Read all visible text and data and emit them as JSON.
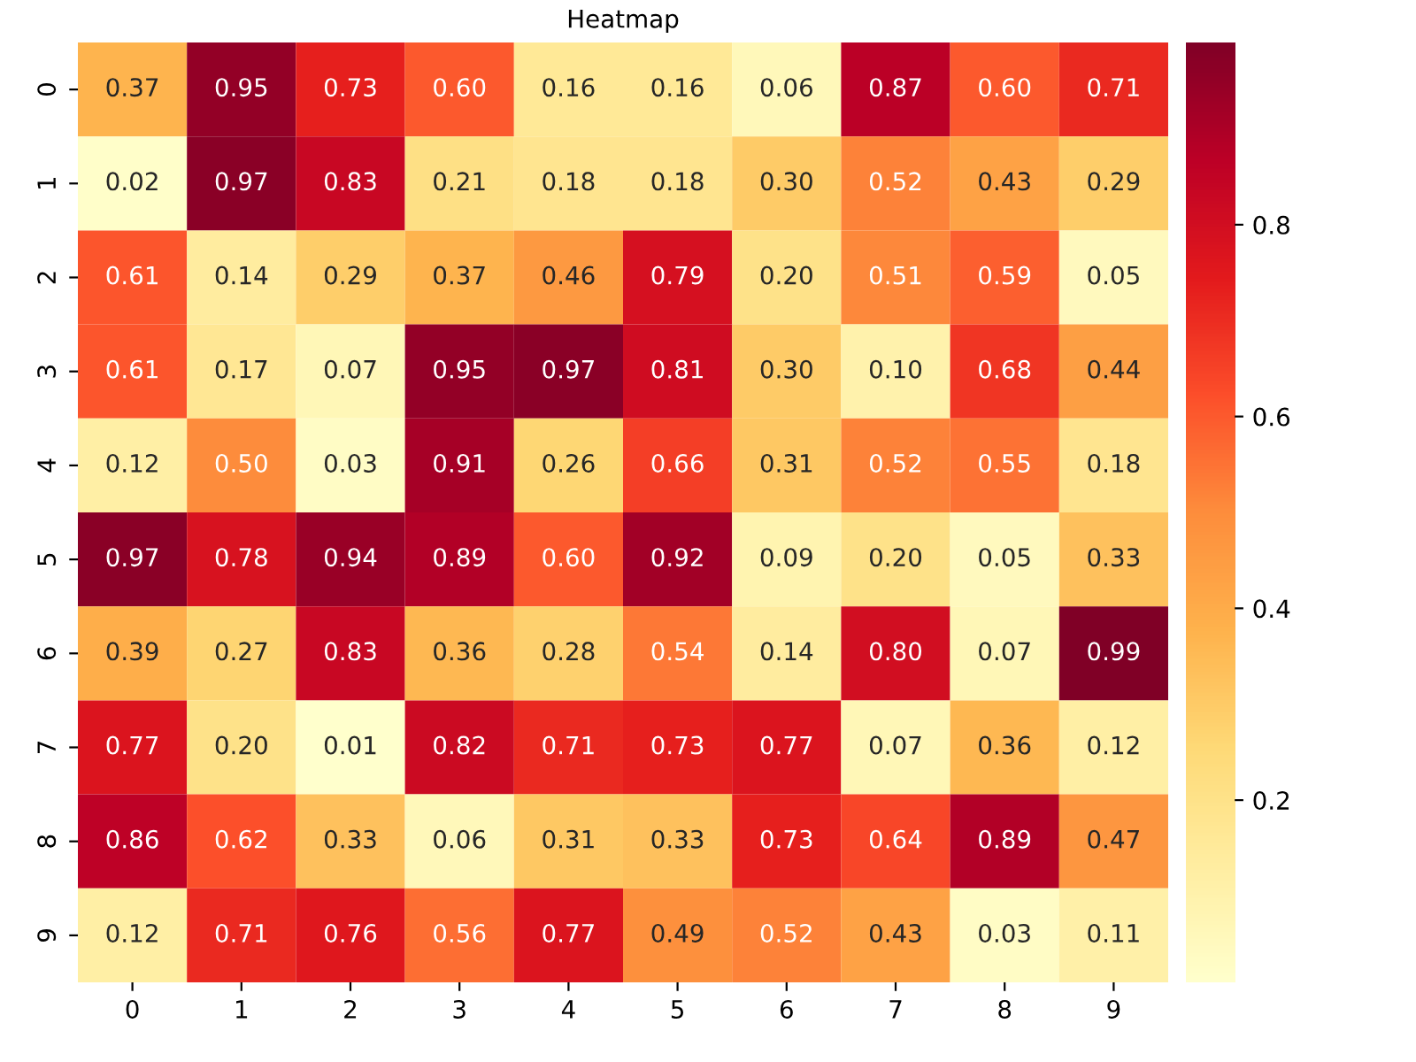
{
  "chart_data": {
    "type": "heatmap",
    "title": "Heatmap",
    "categories": [
      "0",
      "1",
      "2",
      "3",
      "4",
      "5",
      "6",
      "7",
      "8",
      "9"
    ],
    "y_categories": [
      "0",
      "1",
      "2",
      "3",
      "4",
      "5",
      "6",
      "7",
      "8",
      "9"
    ],
    "cells": [
      [
        0.37,
        0.95,
        0.73,
        0.6,
        0.16,
        0.16,
        0.06,
        0.87,
        0.6,
        0.71
      ],
      [
        0.02,
        0.97,
        0.83,
        0.21,
        0.18,
        0.18,
        0.3,
        0.52,
        0.43,
        0.29
      ],
      [
        0.61,
        0.14,
        0.29,
        0.37,
        0.46,
        0.79,
        0.2,
        0.51,
        0.59,
        0.05
      ],
      [
        0.61,
        0.17,
        0.07,
        0.95,
        0.97,
        0.81,
        0.3,
        0.1,
        0.68,
        0.44
      ],
      [
        0.12,
        0.5,
        0.03,
        0.91,
        0.26,
        0.66,
        0.31,
        0.52,
        0.55,
        0.18
      ],
      [
        0.97,
        0.78,
        0.94,
        0.89,
        0.6,
        0.92,
        0.09,
        0.2,
        0.05,
        0.33
      ],
      [
        0.39,
        0.27,
        0.83,
        0.36,
        0.28,
        0.54,
        0.14,
        0.8,
        0.07,
        0.99
      ],
      [
        0.77,
        0.2,
        0.01,
        0.82,
        0.71,
        0.73,
        0.77,
        0.07,
        0.36,
        0.12
      ],
      [
        0.86,
        0.62,
        0.33,
        0.06,
        0.31,
        0.33,
        0.73,
        0.64,
        0.89,
        0.47
      ],
      [
        0.12,
        0.71,
        0.76,
        0.56,
        0.77,
        0.49,
        0.52,
        0.43,
        0.03,
        0.11
      ]
    ],
    "cell_labels": [
      [
        "0.37",
        "0.95",
        "0.73",
        "0.60",
        "0.16",
        "0.16",
        "0.06",
        "0.87",
        "0.60",
        "0.71"
      ],
      [
        "0.02",
        "0.97",
        "0.83",
        "0.21",
        "0.18",
        "0.18",
        "0.30",
        "0.52",
        "0.43",
        "0.29"
      ],
      [
        "0.61",
        "0.14",
        "0.29",
        "0.37",
        "0.46",
        "0.79",
        "0.20",
        "0.51",
        "0.59",
        "0.05"
      ],
      [
        "0.61",
        "0.17",
        "0.07",
        "0.95",
        "0.97",
        "0.81",
        "0.30",
        "0.10",
        "0.68",
        "0.44"
      ],
      [
        "0.12",
        "0.50",
        "0.03",
        "0.91",
        "0.26",
        "0.66",
        "0.31",
        "0.52",
        "0.55",
        "0.18"
      ],
      [
        "0.97",
        "0.78",
        "0.94",
        "0.89",
        "0.60",
        "0.92",
        "0.09",
        "0.20",
        "0.05",
        "0.33"
      ],
      [
        "0.39",
        "0.27",
        "0.83",
        "0.36",
        "0.28",
        "0.54",
        "0.14",
        "0.80",
        "0.07",
        "0.99"
      ],
      [
        "0.77",
        "0.20",
        "0.01",
        "0.82",
        "0.71",
        "0.73",
        "0.77",
        "0.07",
        "0.36",
        "0.12"
      ],
      [
        "0.86",
        "0.62",
        "0.33",
        "0.06",
        "0.31",
        "0.33",
        "0.73",
        "0.64",
        "0.89",
        "0.47"
      ],
      [
        "0.12",
        "0.71",
        "0.76",
        "0.56",
        "0.77",
        "0.49",
        "0.52",
        "0.43",
        "0.03",
        "0.11"
      ]
    ],
    "clim": [
      0.01,
      0.99
    ],
    "cticks": [
      0.2,
      0.4,
      0.6,
      0.8
    ]
  }
}
